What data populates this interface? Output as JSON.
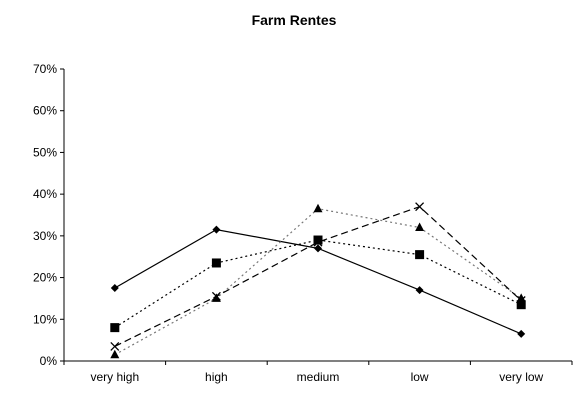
{
  "chart_data": {
    "type": "line",
    "title": "Farm Rentes",
    "xlabel": "",
    "ylabel": "",
    "categories": [
      "very high",
      "high",
      "medium",
      "low",
      "very low"
    ],
    "y_ticks": [
      "0%",
      "10%",
      "20%",
      "30%",
      "40%",
      "50%",
      "60%",
      "70%"
    ],
    "ylim": [
      0,
      70
    ],
    "grid": false,
    "legend": "none",
    "series": [
      {
        "values": [
          17.5,
          31.5,
          27,
          17,
          6.5
        ],
        "marker": "diamond",
        "line_style": "solid",
        "color": "#000000"
      },
      {
        "values": [
          8,
          23.5,
          29,
          25.5,
          13.5
        ],
        "marker": "square",
        "line_style": "dotted",
        "color": "#000000"
      },
      {
        "values": [
          1.5,
          15,
          36.5,
          32,
          15
        ],
        "marker": "triangle",
        "line_style": "dotted",
        "color": "#777777"
      },
      {
        "values": [
          3.5,
          15.5,
          28.5,
          37,
          14.5
        ],
        "marker": "x",
        "line_style": "dashed",
        "color": "#000000"
      }
    ]
  }
}
